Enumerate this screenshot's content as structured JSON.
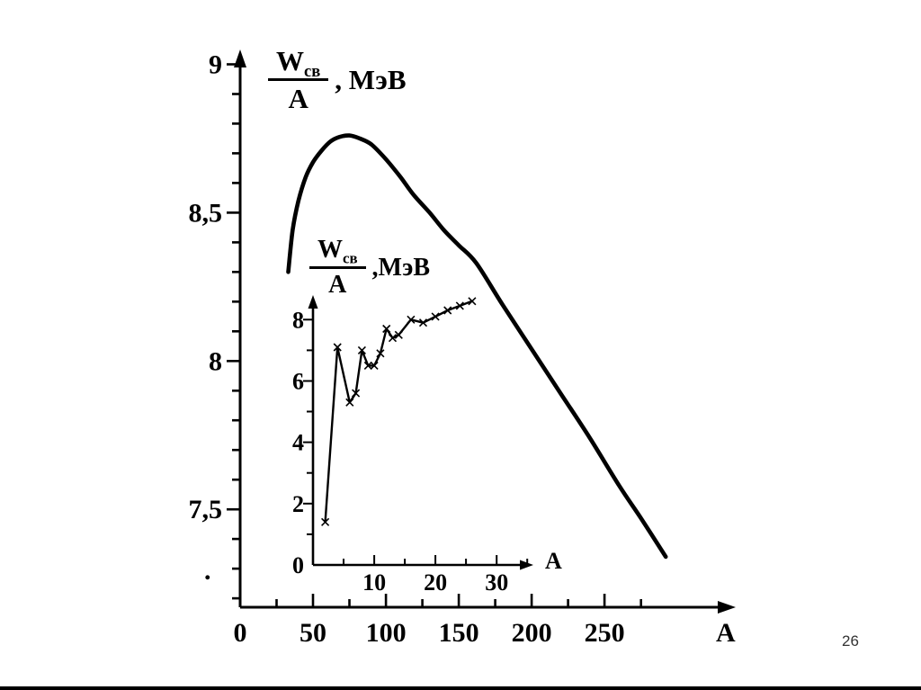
{
  "page": {
    "number": "26",
    "stray_mark": ".",
    "background": "#ffffff",
    "ink": "#000000"
  },
  "chart_data": [
    {
      "id": "main",
      "type": "line",
      "title": {
        "numerator": "W",
        "numerator_sub": "св",
        "denominator": "A",
        "units": ", МэВ"
      },
      "xlabel": "A",
      "ylabel": "Wсв/A, МэВ",
      "xlim": [
        0,
        340
      ],
      "ylim": [
        7.17,
        9.05
      ],
      "grid": false,
      "x_ticks": {
        "major": [
          50,
          100,
          150,
          200,
          250
        ],
        "minor": [
          25,
          75,
          125,
          175,
          225,
          275
        ]
      },
      "y_ticks": {
        "major": [
          7.5,
          8,
          8.5,
          9
        ],
        "minor": [
          7.2,
          7.3,
          7.4,
          7.6,
          7.7,
          7.8,
          7.9,
          8.1,
          8.2,
          8.3,
          8.4,
          8.6,
          8.7,
          8.8,
          8.9
        ]
      },
      "x_tick_labels": [
        {
          "v": 0,
          "t": "0"
        },
        {
          "v": 50,
          "t": "50"
        },
        {
          "v": 100,
          "t": "100"
        },
        {
          "v": 150,
          "t": "150"
        },
        {
          "v": 200,
          "t": "200"
        },
        {
          "v": 250,
          "t": "250"
        }
      ],
      "y_tick_labels": [
        {
          "v": 7.5,
          "t": "7,5"
        },
        {
          "v": 8,
          "t": "8"
        },
        {
          "v": 8.5,
          "t": "8,5"
        },
        {
          "v": 9,
          "t": "9"
        }
      ],
      "series": [
        {
          "name": "binding-energy-per-nucleon",
          "smooth": true,
          "x": [
            33,
            36,
            40,
            45,
            50,
            56,
            62,
            68,
            75,
            82,
            90,
            100,
            110,
            119,
            130,
            140,
            150,
            162,
            180,
            200,
            220,
            240,
            260,
            275,
            292
          ],
          "y": [
            8.3,
            8.44,
            8.54,
            8.62,
            8.67,
            8.71,
            8.74,
            8.755,
            8.76,
            8.75,
            8.73,
            8.68,
            8.62,
            8.56,
            8.5,
            8.44,
            8.39,
            8.33,
            8.19,
            8.04,
            7.89,
            7.74,
            7.58,
            7.47,
            7.34
          ]
        }
      ]
    },
    {
      "id": "inset",
      "type": "line",
      "title": {
        "numerator": "W",
        "numerator_sub": "св",
        "denominator": "A",
        "units": ",МэВ"
      },
      "xlabel": "A",
      "ylabel": "Wсв/A, МэВ",
      "xlim": [
        0,
        36
      ],
      "ylim": [
        0,
        8.8
      ],
      "grid": false,
      "x_ticks": {
        "major": [
          10,
          20,
          30
        ],
        "minor": [
          5,
          15,
          25,
          35
        ]
      },
      "y_ticks": {
        "major": [
          2,
          4,
          6,
          8
        ],
        "minor": [
          1,
          3,
          5,
          7
        ]
      },
      "x_tick_labels": [
        {
          "v": 10,
          "t": "10"
        },
        {
          "v": 20,
          "t": "20"
        },
        {
          "v": 30,
          "t": "30"
        }
      ],
      "y_tick_labels": [
        {
          "v": 0,
          "t": "0"
        },
        {
          "v": 2,
          "t": "2"
        },
        {
          "v": 4,
          "t": "4"
        },
        {
          "v": 6,
          "t": "6"
        },
        {
          "v": 8,
          "t": "8"
        }
      ],
      "series": [
        {
          "name": "light-nuclei-binding-energy",
          "smooth": false,
          "marker": "x",
          "x": [
            2,
            4,
            6,
            7,
            8,
            9,
            10,
            11,
            12,
            13,
            14,
            16,
            18,
            20,
            22,
            24,
            26
          ],
          "y": [
            1.4,
            7.1,
            5.3,
            5.6,
            7.0,
            6.5,
            6.5,
            6.9,
            7.7,
            7.4,
            7.5,
            8.0,
            7.9,
            8.1,
            8.3,
            8.45,
            8.6
          ]
        }
      ]
    }
  ]
}
